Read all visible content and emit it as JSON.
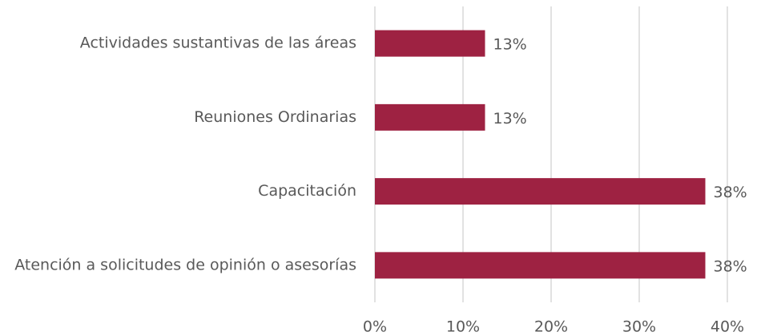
{
  "chart_data": {
    "type": "barh",
    "categories": [
      "Actividades sustantivas de las áreas",
      "Reuniones Ordinarias",
      "Capacitación",
      "Atención a solicitudes de opinión o asesorías"
    ],
    "values": [
      12.5,
      12.5,
      37.5,
      37.5
    ],
    "value_labels": [
      "13%",
      "13%",
      "38%",
      "38%"
    ],
    "color": "#9e2242",
    "xlim": [
      0,
      40
    ],
    "xticks": [
      {
        "value": 0,
        "label": "0%"
      },
      {
        "value": 10,
        "label": "10%"
      },
      {
        "value": 20,
        "label": "20%"
      },
      {
        "value": 30,
        "label": "30%"
      },
      {
        "value": 40,
        "label": "40%"
      }
    ],
    "grid": true
  }
}
